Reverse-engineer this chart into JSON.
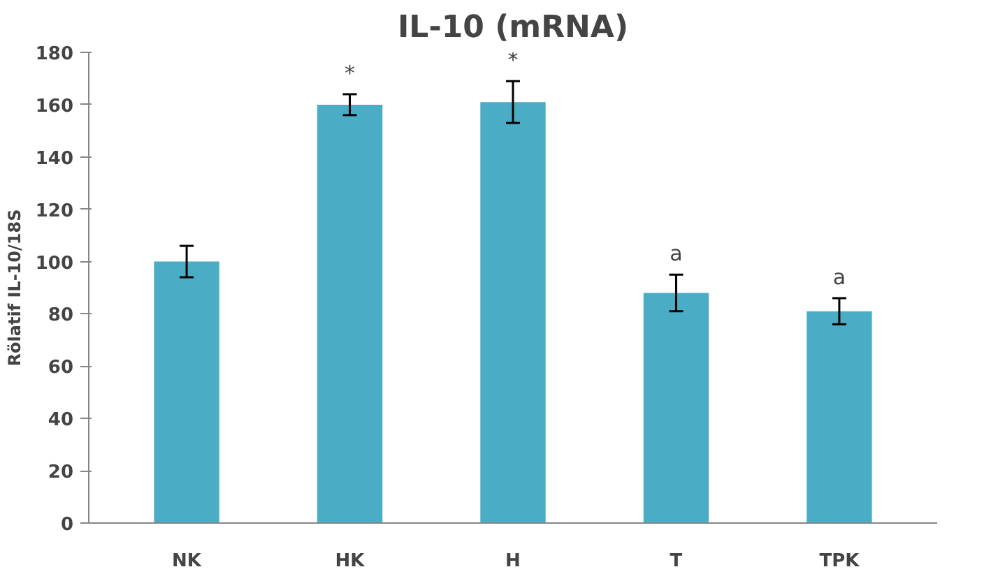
{
  "chart_data": {
    "type": "bar",
    "title": "IL-10 (mRNA)",
    "ylabel": "Rölatif IL-10/18S",
    "categories": [
      "NK",
      "HK",
      "H",
      "T",
      "TPK"
    ],
    "values": [
      100,
      160,
      161,
      88,
      81
    ],
    "errors": [
      6,
      4,
      8,
      7,
      5
    ],
    "color": "#4bacc6",
    "ylim": [
      0,
      180
    ],
    "yticks": [
      0,
      20,
      40,
      60,
      80,
      100,
      120,
      140,
      160,
      180
    ],
    "grid": false,
    "annotations": [
      {
        "text": "*",
        "x": "HK",
        "y": 164
      },
      {
        "text": "*",
        "x": "H",
        "y": 169
      },
      {
        "text": "a",
        "x": "T",
        "y": 95
      },
      {
        "text": "a",
        "x": "TPK",
        "y": 86
      }
    ]
  }
}
